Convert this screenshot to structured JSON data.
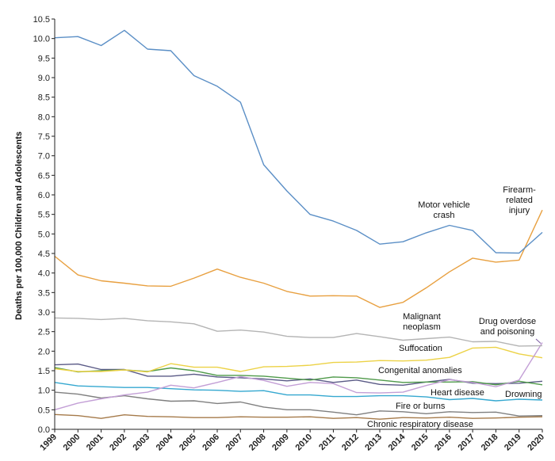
{
  "chart_data": {
    "type": "line",
    "title": "",
    "xlabel": "",
    "ylabel": "Deaths per 100,000 Children and Adolescents",
    "x": [
      1999,
      2000,
      2001,
      2002,
      2003,
      2004,
      2005,
      2006,
      2007,
      2008,
      2009,
      2010,
      2011,
      2012,
      2013,
      2014,
      2015,
      2016,
      2017,
      2018,
      2019,
      2020
    ],
    "x_tick_labels": [
      "1999",
      "2000",
      "2001",
      "2002",
      "2003",
      "2004",
      "2005",
      "2006",
      "2007",
      "2008",
      "2009",
      "2010",
      "2011",
      "2012",
      "2013",
      "2014",
      "2015",
      "2016",
      "2017",
      "2018",
      "2019",
      "2020"
    ],
    "ylim": [
      0,
      10.5
    ],
    "y_ticks": [
      0.0,
      0.5,
      1.0,
      1.5,
      2.0,
      2.5,
      3.0,
      3.5,
      4.0,
      4.5,
      5.0,
      5.5,
      6.0,
      6.5,
      7.0,
      7.5,
      8.0,
      8.5,
      9.0,
      9.5,
      10.0,
      10.5
    ],
    "y_tick_labels": [
      "0.0",
      "0.5",
      "1.0",
      "1.5",
      "2.0",
      "2.5",
      "3.0",
      "3.5",
      "4.0",
      "4.5",
      "5.0",
      "5.5",
      "6.0",
      "6.5",
      "7.0",
      "7.5",
      "8.0",
      "8.5",
      "9.0",
      "9.5",
      "10.0",
      "10.5"
    ],
    "grid": false,
    "legend": "none",
    "series": [
      {
        "name": "Motor vehicle crash",
        "label_lines": [
          "Motor vehicle",
          "crash"
        ],
        "color": "#5b8fc6",
        "values": [
          10.02,
          10.05,
          9.82,
          10.21,
          9.73,
          9.69,
          9.05,
          8.78,
          8.37,
          6.77,
          6.1,
          5.5,
          5.33,
          5.09,
          4.74,
          4.8,
          5.03,
          5.22,
          5.09,
          4.52,
          4.51,
          5.04
        ]
      },
      {
        "name": "Firearm-related injury",
        "label_lines": [
          "Firearm-",
          "related",
          "injury"
        ],
        "color": "#e8a040",
        "values": [
          4.43,
          3.95,
          3.8,
          3.74,
          3.67,
          3.66,
          3.87,
          4.1,
          3.89,
          3.74,
          3.53,
          3.41,
          3.42,
          3.41,
          3.12,
          3.25,
          3.62,
          4.03,
          4.38,
          4.28,
          4.33,
          5.61
        ]
      },
      {
        "name": "Malignant neoplasm",
        "label_lines": [
          "Malignant",
          "neoplasm"
        ],
        "color": "#b4b4b4",
        "values": [
          2.85,
          2.84,
          2.81,
          2.84,
          2.78,
          2.75,
          2.7,
          2.51,
          2.54,
          2.49,
          2.38,
          2.35,
          2.35,
          2.45,
          2.37,
          2.28,
          2.32,
          2.36,
          2.24,
          2.25,
          2.13,
          2.14
        ]
      },
      {
        "name": "Drug overdose and poisoning",
        "label_lines": [
          "Drug overdose",
          "and poisoning"
        ],
        "color": "#c39fd6",
        "values": [
          0.5,
          0.67,
          0.78,
          0.88,
          0.95,
          1.13,
          1.06,
          1.2,
          1.35,
          1.25,
          1.1,
          1.2,
          1.17,
          0.94,
          0.93,
          0.95,
          1.12,
          1.27,
          1.2,
          1.09,
          1.26,
          2.22
        ]
      },
      {
        "name": "Suffocation",
        "label_lines": [
          "Suffocation"
        ],
        "color": "#ecd246",
        "values": [
          1.55,
          1.48,
          1.48,
          1.52,
          1.47,
          1.68,
          1.59,
          1.59,
          1.48,
          1.6,
          1.61,
          1.64,
          1.71,
          1.72,
          1.76,
          1.75,
          1.77,
          1.84,
          2.08,
          2.1,
          1.93,
          1.83
        ]
      },
      {
        "name": "Congenital anomalies",
        "label_lines": [
          "Congenital anomalies"
        ],
        "color": "#4f9a4a",
        "values": [
          1.58,
          1.47,
          1.5,
          1.52,
          1.48,
          1.57,
          1.5,
          1.38,
          1.38,
          1.36,
          1.31,
          1.26,
          1.34,
          1.32,
          1.26,
          1.2,
          1.21,
          1.21,
          1.22,
          1.14,
          1.23,
          1.14
        ]
      },
      {
        "name": "Drowning",
        "label_lines": [
          "Drowning"
        ],
        "color": "#5a5a86",
        "values": [
          1.65,
          1.67,
          1.53,
          1.53,
          1.36,
          1.36,
          1.41,
          1.34,
          1.32,
          1.29,
          1.24,
          1.29,
          1.2,
          1.26,
          1.15,
          1.13,
          1.21,
          1.28,
          1.18,
          1.17,
          1.18,
          1.23
        ]
      },
      {
        "name": "Heart disease",
        "label_lines": [
          "Heart disease"
        ],
        "color": "#35a8d0",
        "values": [
          1.2,
          1.11,
          1.09,
          1.07,
          1.07,
          1.04,
          1.01,
          1.0,
          0.97,
          0.99,
          0.88,
          0.88,
          0.84,
          0.84,
          0.86,
          0.86,
          0.83,
          0.76,
          0.79,
          0.73,
          0.77,
          0.75
        ]
      },
      {
        "name": "Fire or burns",
        "label_lines": [
          "Fire or burns"
        ],
        "color": "#7f7f7f",
        "values": [
          0.95,
          0.9,
          0.8,
          0.86,
          0.78,
          0.72,
          0.73,
          0.66,
          0.7,
          0.57,
          0.5,
          0.5,
          0.44,
          0.37,
          0.47,
          0.45,
          0.4,
          0.45,
          0.43,
          0.44,
          0.34,
          0.35
        ]
      },
      {
        "name": "Chronic respiratory disease",
        "label_lines": [
          "Chronic respiratory disease"
        ],
        "color": "#a57a4a",
        "values": [
          0.38,
          0.35,
          0.28,
          0.37,
          0.33,
          0.32,
          0.3,
          0.3,
          0.32,
          0.31,
          0.31,
          0.32,
          0.28,
          0.3,
          0.26,
          0.3,
          0.29,
          0.31,
          0.28,
          0.29,
          0.31,
          0.32
        ]
      }
    ]
  }
}
